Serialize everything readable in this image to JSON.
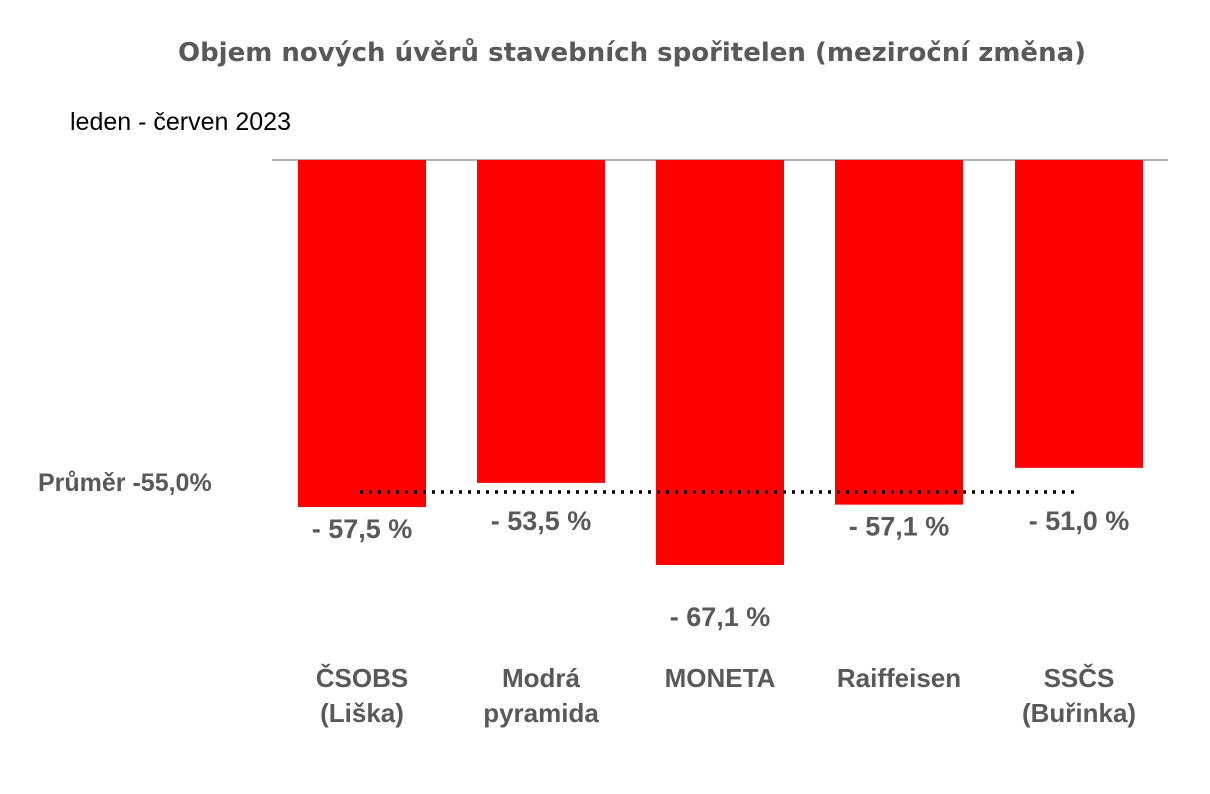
{
  "chart_data": {
    "type": "bar",
    "title": "Objem nových úvěrů stavebních spořitelen (meziroční změna)",
    "subtitle": "leden - červen 2023",
    "categories": [
      [
        "ČSOBS",
        "(Liška)"
      ],
      [
        "Modrá",
        "pyramida"
      ],
      [
        "MONETA"
      ],
      [
        "Raiffeisen"
      ],
      [
        "SSČS",
        "(Buřinka)"
      ]
    ],
    "values": [
      -57.5,
      -53.5,
      -67.1,
      -57.1,
      -51.0
    ],
    "data_labels": [
      "- 57,5 %",
      "- 53,5 %",
      "- 67,1 %",
      "- 57,1 %",
      "- 51,0 %"
    ],
    "average": {
      "label": "Průměr -55,0%",
      "value": -55.0
    },
    "ylim": [
      -67.1,
      0
    ],
    "grid": false,
    "legend": "none",
    "colors": {
      "bar": "#ff0000",
      "text": "#595959",
      "axis": "#999999",
      "average_line": "#000000"
    }
  }
}
